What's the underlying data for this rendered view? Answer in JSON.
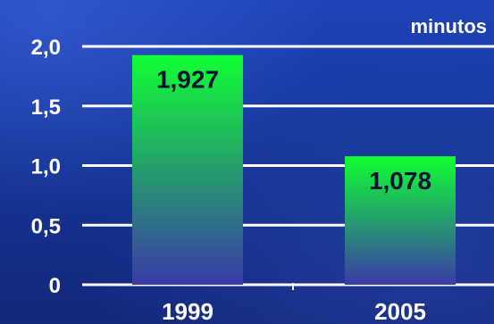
{
  "chart_data": {
    "type": "bar",
    "categories": [
      "1999",
      "2005"
    ],
    "values": [
      1.927,
      1.078
    ],
    "value_labels": [
      "1,927",
      "1,078"
    ],
    "unit_label": "minutos",
    "yticks": [
      0,
      0.5,
      1.0,
      1.5,
      2.0
    ],
    "ytick_labels": [
      "0",
      "0,5",
      "1,0",
      "1,5",
      "2,0"
    ],
    "ylim": [
      0,
      2.0
    ],
    "grid": true,
    "colors": {
      "bar_top": "#11ff33",
      "bar_bottom": "#3a3aa8",
      "grid": "#ffffff",
      "text": "#ffffff",
      "data_label": "#0b1235"
    }
  }
}
